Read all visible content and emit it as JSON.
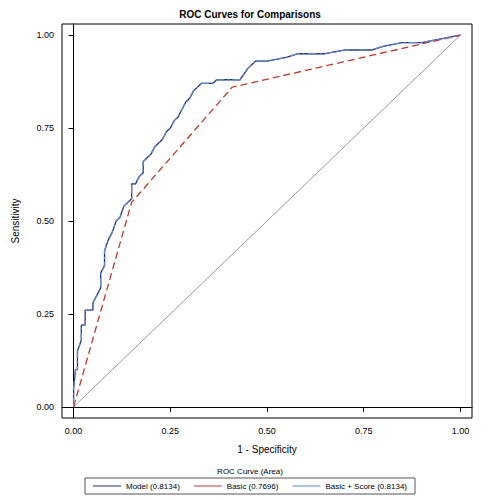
{
  "chart_data": {
    "type": "line",
    "title": "ROC Curves for Comparisons",
    "x_label": "1 - Specificity",
    "y_label": "Sensitivity",
    "legend_title": "ROC Curve (Area)",
    "xlim": [
      -0.03,
      1.03
    ],
    "ylim": [
      -0.03,
      1.03
    ],
    "xticks": [
      {
        "value": 0,
        "label": "0.00"
      },
      {
        "value": 0.25,
        "label": "0.25"
      },
      {
        "value": 0.5,
        "label": "0.50"
      },
      {
        "value": 0.75,
        "label": "0.75"
      },
      {
        "value": 1,
        "label": "1.00"
      }
    ],
    "yticks": [
      {
        "value": 0,
        "label": "0.00"
      },
      {
        "value": 0.25,
        "label": "0.25"
      },
      {
        "value": 0.5,
        "label": "0.50"
      },
      {
        "value": 0.75,
        "label": "0.75"
      },
      {
        "value": 1,
        "label": "1.00"
      }
    ],
    "grid": false,
    "legend": "bottom",
    "reference_line": {
      "x": [
        0,
        1
      ],
      "values": [
        0,
        1
      ],
      "color": "#9a9a9a",
      "line_style": "solid"
    },
    "series": [
      {
        "name": "Model (0.8134)",
        "color": "#22307a",
        "line_style": "solid",
        "x": [
          0,
          0,
          0.005,
          0.01,
          0.01,
          0.02,
          0.02,
          0.03,
          0.03,
          0.05,
          0.05,
          0.06,
          0.07,
          0.07,
          0.08,
          0.08,
          0.09,
          0.1,
          0.11,
          0.12,
          0.13,
          0.14,
          0.15,
          0.15,
          0.16,
          0.17,
          0.18,
          0.18,
          0.19,
          0.2,
          0.21,
          0.22,
          0.23,
          0.24,
          0.25,
          0.26,
          0.27,
          0.28,
          0.29,
          0.3,
          0.31,
          0.32,
          0.33,
          0.36,
          0.37,
          0.43,
          0.45,
          0.47,
          0.5,
          0.55,
          0.58,
          0.65,
          0.7,
          0.77,
          0.8,
          0.85,
          0.9,
          0.95,
          1
        ],
        "values": [
          0,
          0.05,
          0.1,
          0.1,
          0.15,
          0.18,
          0.22,
          0.22,
          0.26,
          0.26,
          0.28,
          0.3,
          0.32,
          0.36,
          0.38,
          0.42,
          0.45,
          0.47,
          0.5,
          0.51,
          0.54,
          0.55,
          0.56,
          0.6,
          0.6,
          0.62,
          0.63,
          0.66,
          0.67,
          0.68,
          0.7,
          0.71,
          0.72,
          0.74,
          0.75,
          0.77,
          0.78,
          0.8,
          0.82,
          0.83,
          0.85,
          0.86,
          0.87,
          0.87,
          0.88,
          0.88,
          0.91,
          0.93,
          0.93,
          0.94,
          0.95,
          0.95,
          0.96,
          0.96,
          0.97,
          0.98,
          0.98,
          0.99,
          1
        ]
      },
      {
        "name": "Basic (0.7696)",
        "color": "#c0392b",
        "line_style": "dashed",
        "x": [
          0,
          0.15,
          0.41,
          1
        ],
        "values": [
          0,
          0.55,
          0.86,
          1
        ]
      },
      {
        "name": "Basic + Score (0.8134)",
        "color": "#5f86c9",
        "line_style": "dashdot",
        "x": [
          0,
          0,
          0.005,
          0.01,
          0.01,
          0.02,
          0.02,
          0.03,
          0.03,
          0.05,
          0.05,
          0.06,
          0.07,
          0.07,
          0.08,
          0.08,
          0.09,
          0.1,
          0.11,
          0.12,
          0.13,
          0.14,
          0.15,
          0.15,
          0.16,
          0.17,
          0.18,
          0.18,
          0.19,
          0.2,
          0.21,
          0.22,
          0.23,
          0.24,
          0.25,
          0.26,
          0.27,
          0.28,
          0.29,
          0.3,
          0.31,
          0.32,
          0.33,
          0.36,
          0.37,
          0.43,
          0.45,
          0.47,
          0.5,
          0.55,
          0.58,
          0.65,
          0.7,
          0.77,
          0.8,
          0.85,
          0.9,
          0.95,
          1
        ],
        "values": [
          0,
          0.05,
          0.1,
          0.1,
          0.15,
          0.18,
          0.22,
          0.22,
          0.26,
          0.26,
          0.28,
          0.3,
          0.32,
          0.36,
          0.38,
          0.42,
          0.45,
          0.47,
          0.5,
          0.51,
          0.54,
          0.55,
          0.56,
          0.6,
          0.6,
          0.62,
          0.63,
          0.66,
          0.67,
          0.68,
          0.7,
          0.71,
          0.72,
          0.74,
          0.75,
          0.77,
          0.78,
          0.8,
          0.82,
          0.83,
          0.85,
          0.86,
          0.87,
          0.87,
          0.88,
          0.88,
          0.91,
          0.93,
          0.93,
          0.94,
          0.95,
          0.95,
          0.96,
          0.96,
          0.97,
          0.98,
          0.98,
          0.99,
          1
        ]
      }
    ]
  }
}
